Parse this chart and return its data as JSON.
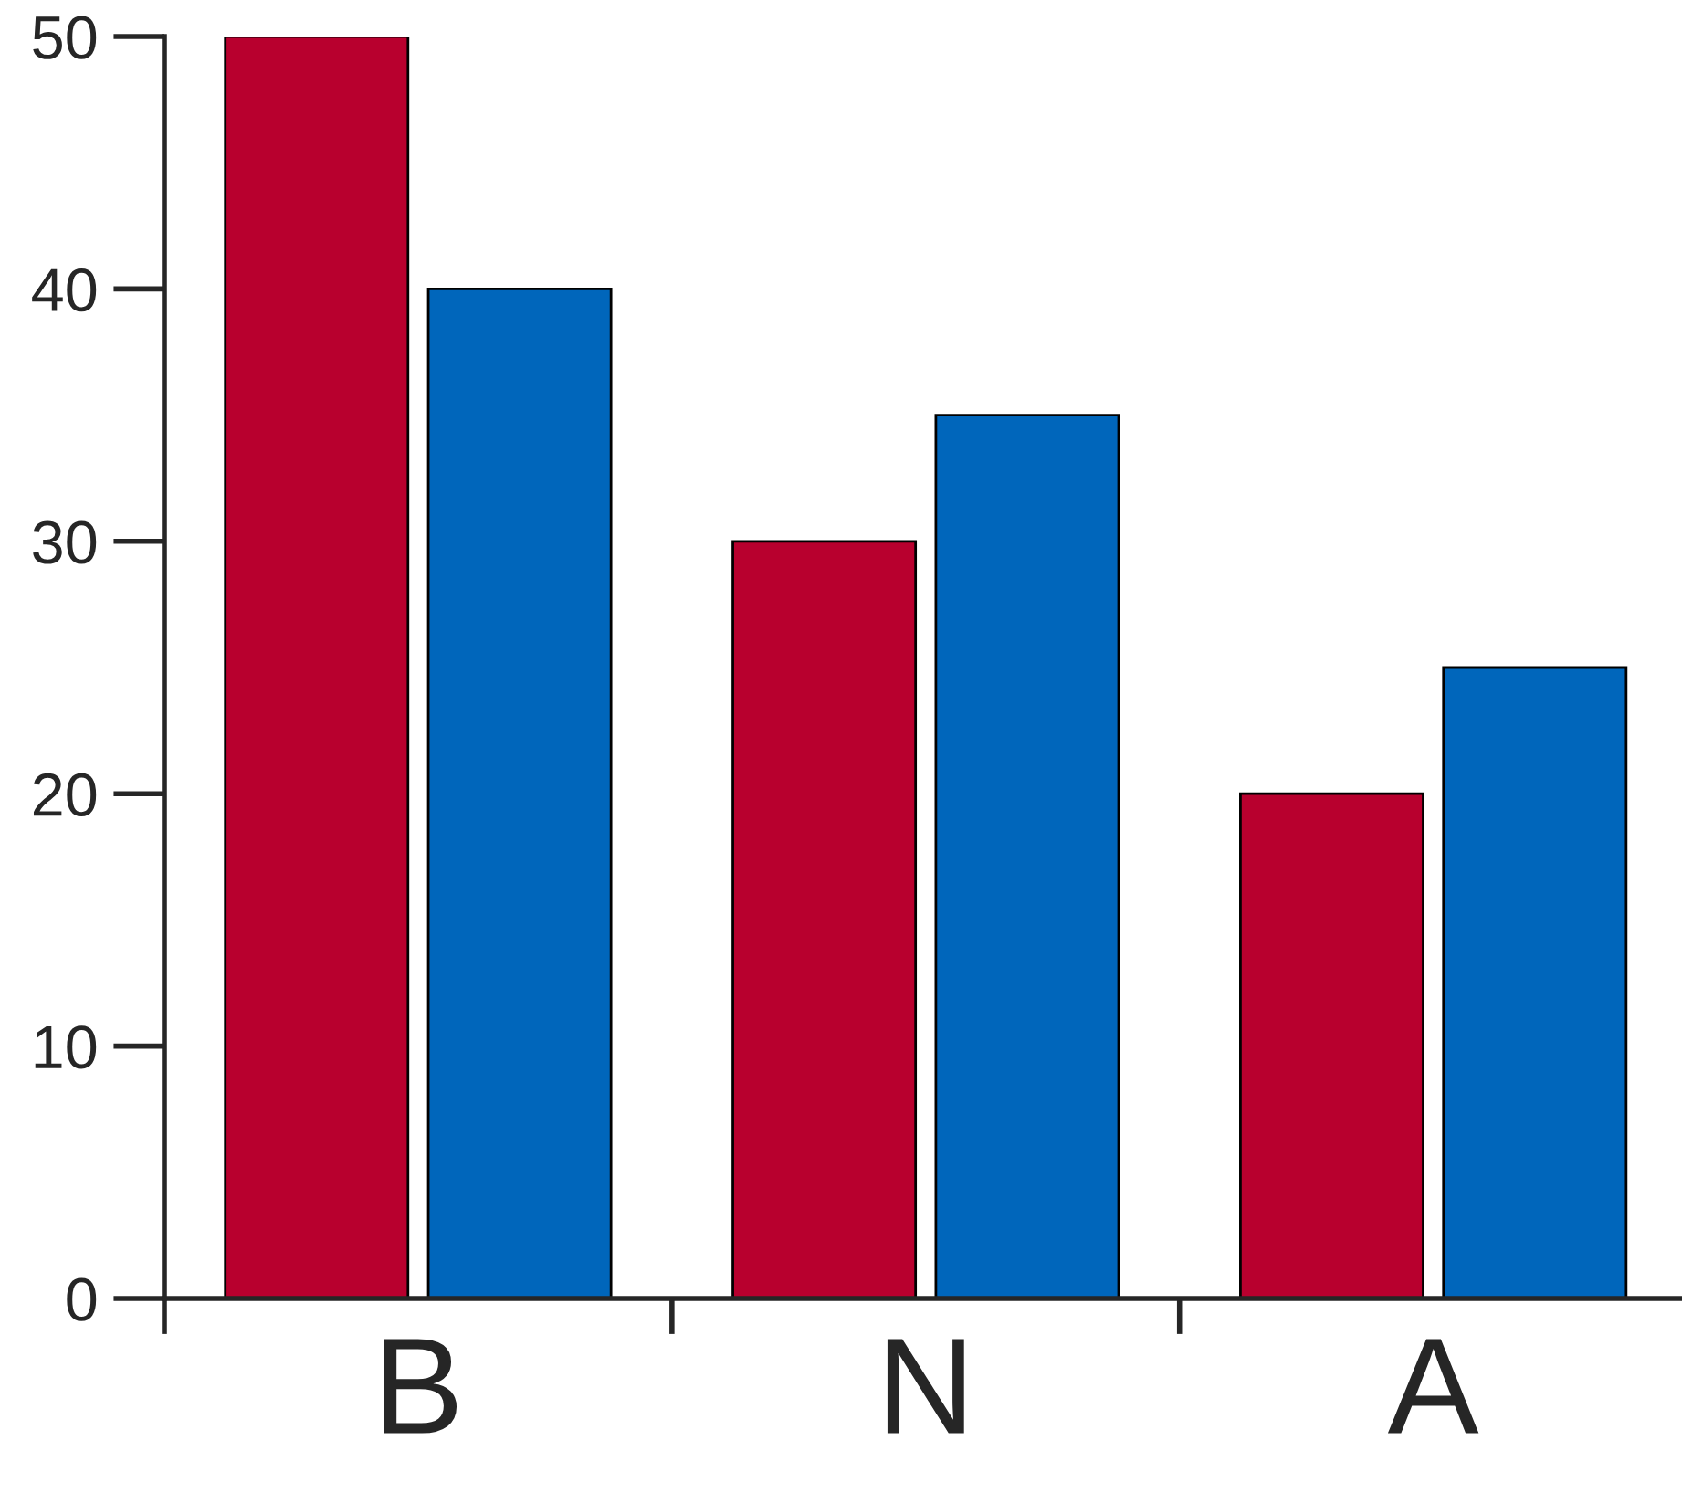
{
  "chart_data": {
    "type": "bar",
    "categories": [
      "B",
      "N",
      "A"
    ],
    "series": [
      {
        "color": "#b8002e",
        "values": [
          50,
          30,
          20
        ]
      },
      {
        "color": "#0066bb",
        "values": [
          40,
          35,
          25
        ]
      }
    ],
    "ylim": [
      0,
      50
    ],
    "yticks": [
      0,
      10,
      20,
      30,
      40,
      50
    ],
    "grid": false,
    "legend": false
  }
}
